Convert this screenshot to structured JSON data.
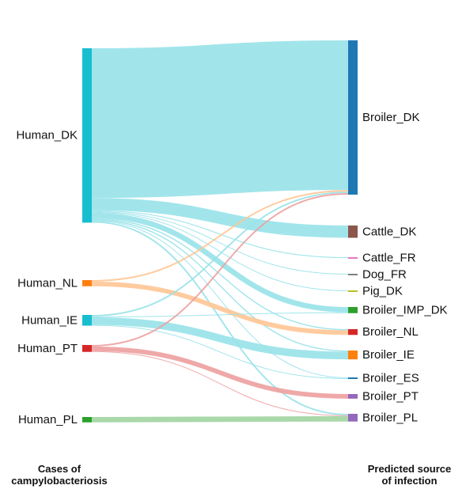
{
  "chart_data": {
    "type": "sankey",
    "sources": [
      {
        "name": "Human_DK",
        "color": "#17becf"
      },
      {
        "name": "Human_NL",
        "color": "#ff7f0e"
      },
      {
        "name": "Human_IE",
        "color": "#17becf"
      },
      {
        "name": "Human_PT",
        "color": "#d62728"
      },
      {
        "name": "Human_PL",
        "color": "#2ca02c"
      }
    ],
    "targets": [
      {
        "name": "Broiler_DK",
        "color": "#1f77b4"
      },
      {
        "name": "Cattle_DK",
        "color": "#8c564b"
      },
      {
        "name": "Cattle_FR",
        "color": "#e377c2"
      },
      {
        "name": "Dog_FR",
        "color": "#7f7f7f"
      },
      {
        "name": "Pig_DK",
        "color": "#bcbd22"
      },
      {
        "name": "Broiler_IMP_DK",
        "color": "#2ca02c"
      },
      {
        "name": "Broiler_NL",
        "color": "#d62728"
      },
      {
        "name": "Broiler_IE",
        "color": "#ff7f0e"
      },
      {
        "name": "Broiler_ES",
        "color": "#1f77b4"
      },
      {
        "name": "Broiler_PT",
        "color": "#9467bd"
      },
      {
        "name": "Broiler_PL",
        "color": "#9467bd"
      }
    ],
    "links": [
      {
        "source": "Human_DK",
        "target": "Broiler_DK",
        "value": 195
      },
      {
        "source": "Human_DK",
        "target": "Cattle_DK",
        "value": 16
      },
      {
        "source": "Human_DK",
        "target": "Cattle_FR",
        "value": 1.2
      },
      {
        "source": "Human_DK",
        "target": "Dog_FR",
        "value": 1
      },
      {
        "source": "Human_DK",
        "target": "Pig_DK",
        "value": 1
      },
      {
        "source": "Human_DK",
        "target": "Broiler_IMP_DK",
        "value": 7
      },
      {
        "source": "Human_DK",
        "target": "Broiler_NL",
        "value": 1.5
      },
      {
        "source": "Human_DK",
        "target": "Broiler_IE",
        "value": 1.5
      },
      {
        "source": "Human_DK",
        "target": "Broiler_ES",
        "value": 1
      },
      {
        "source": "Human_DK",
        "target": "Broiler_PL",
        "value": 2
      },
      {
        "source": "Human_NL",
        "target": "Broiler_DK",
        "value": 2
      },
      {
        "source": "Human_NL",
        "target": "Broiler_NL",
        "value": 6
      },
      {
        "source": "Human_IE",
        "target": "Broiler_DK",
        "value": 2
      },
      {
        "source": "Human_IE",
        "target": "Broiler_IMP_DK",
        "value": 1
      },
      {
        "source": "Human_IE",
        "target": "Broiler_IE",
        "value": 10
      },
      {
        "source": "Human_IE",
        "target": "Broiler_ES",
        "value": 1
      },
      {
        "source": "Human_PT",
        "target": "Broiler_DK",
        "value": 2
      },
      {
        "source": "Human_PT",
        "target": "Broiler_PT",
        "value": 6
      },
      {
        "source": "Human_PT",
        "target": "Broiler_PL",
        "value": 1
      },
      {
        "source": "Human_PL",
        "target": "Broiler_PL",
        "value": 7
      }
    ]
  },
  "footer": {
    "left_line1": "Cases of",
    "left_line2": "campylobacteriosis",
    "right_line1": "Predicted source",
    "right_line2": "of infection"
  }
}
